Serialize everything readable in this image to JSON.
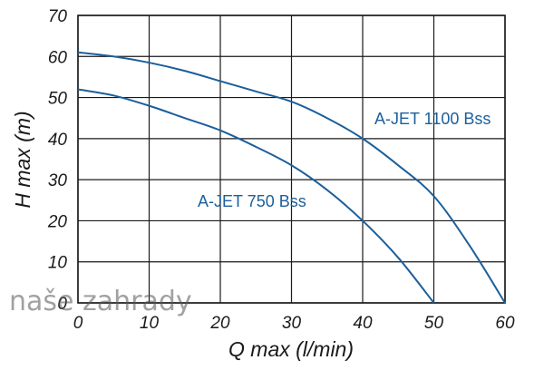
{
  "watermark": "naše zahrady",
  "colors": {
    "curve": "#1c5f9b",
    "grid": "#1a1a1a",
    "text": "#1a1a1a"
  },
  "chart_data": {
    "type": "line",
    "title": "",
    "xlabel": "Q max (l/min)",
    "ylabel": "H max (m)",
    "xlim": [
      0,
      60
    ],
    "ylim": [
      0,
      70
    ],
    "x_ticks": [
      0,
      10,
      20,
      30,
      40,
      50,
      60
    ],
    "y_ticks": [
      0,
      10,
      20,
      30,
      40,
      50,
      60,
      70
    ],
    "grid": true,
    "legend": "none",
    "series": [
      {
        "name": "A-JET 1100 Bss",
        "x": [
          0,
          5,
          10,
          15,
          20,
          25,
          30,
          35,
          40,
          45,
          50,
          55,
          60
        ],
        "y": [
          61,
          60,
          58.5,
          56.5,
          54,
          51.5,
          49,
          45,
          40,
          33.5,
          26,
          14,
          0
        ]
      },
      {
        "name": "A-JET 750 Bss",
        "x": [
          0,
          5,
          10,
          15,
          20,
          25,
          30,
          35,
          40,
          45,
          50
        ],
        "y": [
          52,
          50.5,
          48,
          45,
          42,
          38,
          33.5,
          27.5,
          20,
          11,
          0
        ]
      }
    ]
  }
}
